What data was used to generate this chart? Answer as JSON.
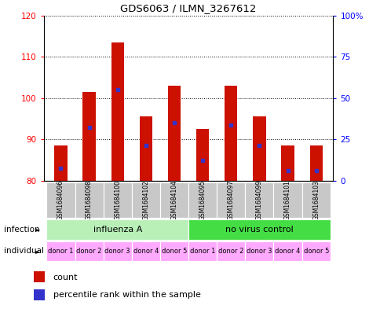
{
  "title": "GDS6063 / ILMN_3267612",
  "samples": [
    "GSM1684096",
    "GSM1684098",
    "GSM1684100",
    "GSM1684102",
    "GSM1684104",
    "GSM1684095",
    "GSM1684097",
    "GSM1684099",
    "GSM1684101",
    "GSM1684103"
  ],
  "counts": [
    88.5,
    101.5,
    113.5,
    95.5,
    103.0,
    92.5,
    103.0,
    95.5,
    88.5,
    88.5
  ],
  "percentile_values": [
    83.0,
    93.0,
    102.0,
    88.5,
    94.0,
    85.0,
    93.5,
    88.5,
    82.5,
    82.5
  ],
  "ymin": 80,
  "ymax": 120,
  "yticks": [
    80,
    90,
    100,
    110,
    120
  ],
  "right_ytick_vals": [
    0,
    25,
    50,
    75,
    100
  ],
  "infection_groups": [
    {
      "label": "influenza A",
      "start": 0,
      "end": 5,
      "color": "#b8f0b8"
    },
    {
      "label": "no virus control",
      "start": 5,
      "end": 10,
      "color": "#44dd44"
    }
  ],
  "individuals": [
    "donor 1",
    "donor 2",
    "donor 3",
    "donor 4",
    "donor 5",
    "donor 1",
    "donor 2",
    "donor 3",
    "donor 4",
    "donor 5"
  ],
  "bar_color": "#cc1100",
  "blue_color": "#3333cc",
  "bar_width": 0.45,
  "bar_bottom": 80,
  "sample_box_color": "#c8c8c8",
  "indiv_box_color": "#ffaaff",
  "indiv_box_color2": "#ee88ee"
}
